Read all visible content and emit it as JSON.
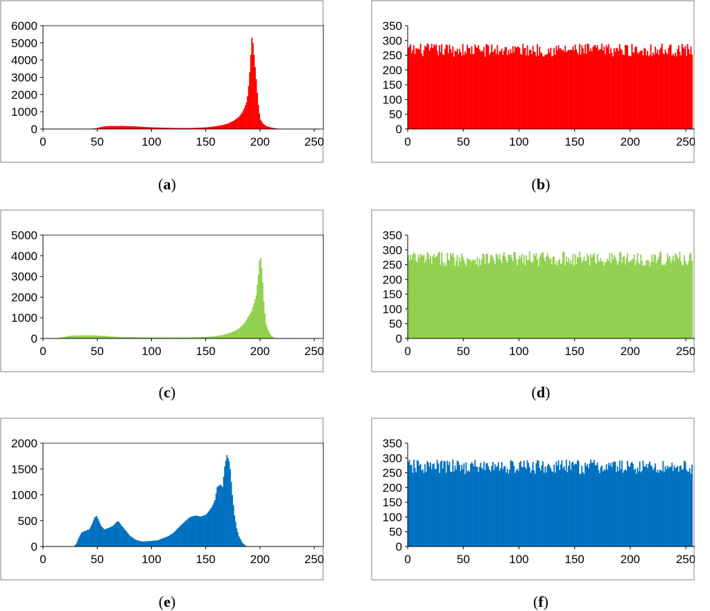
{
  "captions": [
    "a",
    "b",
    "c",
    "d",
    "e",
    "f"
  ],
  "chart_data": [
    {
      "id": "a",
      "type": "bar",
      "color": "#ff0000",
      "xlim": [
        0,
        255
      ],
      "ylim": [
        0,
        6000
      ],
      "xticks": [
        0,
        50,
        100,
        150,
        200,
        250
      ],
      "yticks": [
        0,
        1000,
        2000,
        3000,
        4000,
        5000,
        6000
      ],
      "points": [
        [
          0,
          0
        ],
        [
          40,
          0
        ],
        [
          42,
          10
        ],
        [
          48,
          40
        ],
        [
          52,
          100
        ],
        [
          56,
          150
        ],
        [
          60,
          170
        ],
        [
          65,
          175
        ],
        [
          72,
          175
        ],
        [
          78,
          165
        ],
        [
          85,
          150
        ],
        [
          90,
          130
        ],
        [
          95,
          110
        ],
        [
          100,
          95
        ],
        [
          110,
          75
        ],
        [
          120,
          60
        ],
        [
          130,
          55
        ],
        [
          140,
          65
        ],
        [
          150,
          95
        ],
        [
          155,
          130
        ],
        [
          160,
          170
        ],
        [
          165,
          230
        ],
        [
          170,
          320
        ],
        [
          175,
          470
        ],
        [
          180,
          700
        ],
        [
          183,
          950
        ],
        [
          185,
          1200
        ],
        [
          187,
          1550
        ],
        [
          188,
          1900
        ],
        [
          189,
          2500
        ],
        [
          190,
          3300
        ],
        [
          191,
          4300
        ],
        [
          192,
          5300
        ],
        [
          193,
          5000
        ],
        [
          194,
          4300
        ],
        [
          195,
          3600
        ],
        [
          196,
          2900
        ],
        [
          197,
          2100
        ],
        [
          198,
          1400
        ],
        [
          199,
          900
        ],
        [
          200,
          550
        ],
        [
          202,
          330
        ],
        [
          205,
          180
        ],
        [
          210,
          80
        ],
        [
          215,
          30
        ],
        [
          220,
          10
        ],
        [
          222,
          0
        ],
        [
          255,
          0
        ]
      ]
    },
    {
      "id": "b",
      "type": "bar",
      "color": "#ff0000",
      "xlim": [
        0,
        258
      ],
      "ylim": [
        0,
        350
      ],
      "xticks": [
        0,
        50,
        100,
        150,
        200,
        250
      ],
      "yticks": [
        0,
        50,
        100,
        150,
        200,
        250,
        300,
        350
      ],
      "band": [
        245,
        290
      ]
    },
    {
      "id": "c",
      "type": "bar",
      "color": "#92d050",
      "xlim": [
        0,
        255
      ],
      "ylim": [
        0,
        5000
      ],
      "xticks": [
        0,
        50,
        100,
        150,
        200,
        250
      ],
      "yticks": [
        0,
        1000,
        2000,
        3000,
        4000,
        5000
      ],
      "points": [
        [
          0,
          0
        ],
        [
          8,
          0
        ],
        [
          12,
          20
        ],
        [
          18,
          60
        ],
        [
          22,
          110
        ],
        [
          27,
          140
        ],
        [
          35,
          150
        ],
        [
          45,
          150
        ],
        [
          55,
          130
        ],
        [
          62,
          95
        ],
        [
          70,
          70
        ],
        [
          80,
          60
        ],
        [
          95,
          50
        ],
        [
          110,
          45
        ],
        [
          125,
          45
        ],
        [
          140,
          55
        ],
        [
          150,
          75
        ],
        [
          160,
          120
        ],
        [
          165,
          170
        ],
        [
          170,
          240
        ],
        [
          175,
          330
        ],
        [
          180,
          480
        ],
        [
          183,
          620
        ],
        [
          186,
          800
        ],
        [
          188,
          1000
        ],
        [
          190,
          1150
        ],
        [
          192,
          1350
        ],
        [
          194,
          1700
        ],
        [
          196,
          2100
        ],
        [
          197,
          2600
        ],
        [
          198,
          3100
        ],
        [
          199,
          3800
        ],
        [
          200,
          3900
        ],
        [
          201,
          3400
        ],
        [
          202,
          2700
        ],
        [
          203,
          1800
        ],
        [
          204,
          1200
        ],
        [
          205,
          700
        ],
        [
          207,
          400
        ],
        [
          209,
          200
        ],
        [
          211,
          80
        ],
        [
          213,
          20
        ],
        [
          215,
          0
        ],
        [
          255,
          0
        ]
      ]
    },
    {
      "id": "d",
      "type": "bar",
      "color": "#92d050",
      "xlim": [
        0,
        258
      ],
      "ylim": [
        0,
        350
      ],
      "xticks": [
        0,
        50,
        100,
        150,
        200,
        250
      ],
      "yticks": [
        0,
        50,
        100,
        150,
        200,
        250,
        300,
        350
      ],
      "band": [
        245,
        295
      ]
    },
    {
      "id": "e",
      "type": "bar",
      "color": "#0070c0",
      "xlim": [
        0,
        255
      ],
      "ylim": [
        0,
        2000
      ],
      "xticks": [
        0,
        50,
        100,
        150,
        200,
        250
      ],
      "yticks": [
        0,
        500,
        1000,
        1500,
        2000
      ],
      "points": [
        [
          0,
          0
        ],
        [
          28,
          0
        ],
        [
          30,
          50
        ],
        [
          32,
          150
        ],
        [
          35,
          270
        ],
        [
          38,
          300
        ],
        [
          42,
          330
        ],
        [
          45,
          450
        ],
        [
          47,
          560
        ],
        [
          49,
          590
        ],
        [
          51,
          500
        ],
        [
          53,
          400
        ],
        [
          56,
          330
        ],
        [
          60,
          360
        ],
        [
          64,
          400
        ],
        [
          67,
          470
        ],
        [
          69,
          490
        ],
        [
          72,
          400
        ],
        [
          76,
          300
        ],
        [
          80,
          200
        ],
        [
          85,
          130
        ],
        [
          90,
          100
        ],
        [
          95,
          100
        ],
        [
          100,
          110
        ],
        [
          105,
          120
        ],
        [
          110,
          160
        ],
        [
          115,
          200
        ],
        [
          120,
          270
        ],
        [
          125,
          380
        ],
        [
          130,
          480
        ],
        [
          135,
          570
        ],
        [
          140,
          600
        ],
        [
          145,
          580
        ],
        [
          150,
          620
        ],
        [
          155,
          760
        ],
        [
          158,
          900
        ],
        [
          160,
          1150
        ],
        [
          163,
          1200
        ],
        [
          165,
          1150
        ],
        [
          167,
          1550
        ],
        [
          169,
          1770
        ],
        [
          171,
          1650
        ],
        [
          172,
          1500
        ],
        [
          174,
          1000
        ],
        [
          176,
          600
        ],
        [
          178,
          350
        ],
        [
          180,
          200
        ],
        [
          183,
          80
        ],
        [
          186,
          20
        ],
        [
          188,
          0
        ],
        [
          255,
          0
        ]
      ]
    },
    {
      "id": "f",
      "type": "bar",
      "color": "#0070c0",
      "xlim": [
        0,
        258
      ],
      "ylim": [
        0,
        350
      ],
      "xticks": [
        0,
        50,
        100,
        150,
        200,
        250
      ],
      "yticks": [
        0,
        50,
        100,
        150,
        200,
        250,
        300,
        350
      ],
      "band": [
        245,
        295
      ]
    }
  ]
}
